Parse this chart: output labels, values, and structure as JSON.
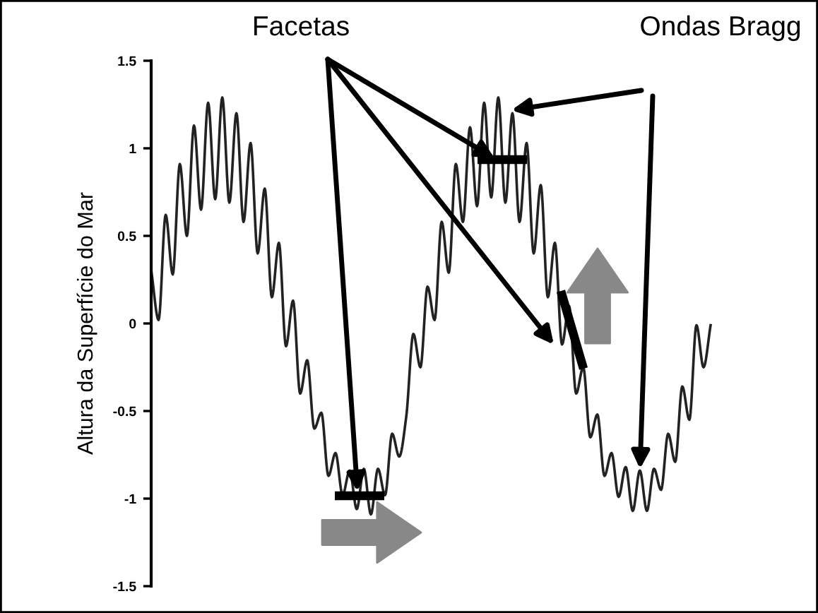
{
  "chart_data": {
    "type": "line",
    "ylabel": "Altura da Superfície do Mar",
    "annotations": [
      "Facetas",
      "Ondas Bragg"
    ],
    "categories": [
      null,
      null,
      null,
      null,
      null,
      null,
      null,
      null,
      null,
      null,
      null,
      null,
      null,
      null,
      null,
      null,
      null,
      null,
      null,
      null,
      null,
      null,
      null,
      null,
      null,
      null,
      null,
      null,
      null,
      null,
      null,
      null,
      null,
      null,
      null,
      null,
      null,
      null,
      null,
      null,
      null,
      null,
      null,
      null,
      null,
      null,
      null,
      null,
      null,
      null,
      null,
      null,
      null,
      null,
      null,
      null,
      null,
      null,
      null,
      null,
      null,
      null,
      null,
      null,
      null,
      null,
      null,
      null,
      null,
      null,
      null,
      null,
      null,
      null,
      null,
      null,
      null,
      null,
      null,
      null
    ],
    "series": [
      {
        "color": "#222222",
        "values": [
          0.29,
          0.02,
          0.62,
          0.28,
          0.91,
          0.5,
          1.13,
          0.65,
          1.26,
          0.71,
          1.29,
          0.69,
          1.2,
          0.58,
          1.03,
          0.4,
          0.77,
          0.15,
          0.46,
          -0.13,
          0.13,
          -0.4,
          -0.21,
          -0.6,
          -0.51,
          -0.87,
          -0.74,
          -0.98,
          -0.84,
          -1.06,
          -0.83,
          -1.09,
          -0.83,
          -0.98,
          -0.63,
          -0.76,
          -0.53,
          -0.06,
          -0.25,
          0.21,
          0.02,
          0.58,
          0.29,
          0.91,
          0.58,
          1.12,
          0.67,
          1.26,
          0.72,
          1.29,
          0.69,
          1.2,
          0.58,
          1.03,
          0.4,
          0.79,
          0.15,
          0.46,
          -0.12,
          0.1,
          -0.4,
          -0.25,
          -0.65,
          -0.52,
          -0.87,
          -0.74,
          -0.99,
          -0.82,
          -1.07,
          -0.84,
          -1.07,
          -0.83,
          -0.95,
          -0.63,
          -0.79,
          -0.36,
          -0.55,
          -0.01,
          -0.25,
          -0.01
        ]
      }
    ],
    "ylim": [
      -1.5,
      1.5
    ],
    "yticks": [
      -1.5,
      -1,
      -0.5,
      0,
      0.5,
      1,
      1.5
    ],
    "tick_labels": "y",
    "grid": false,
    "legend": false,
    "marker": "none",
    "line_style": "solid"
  }
}
